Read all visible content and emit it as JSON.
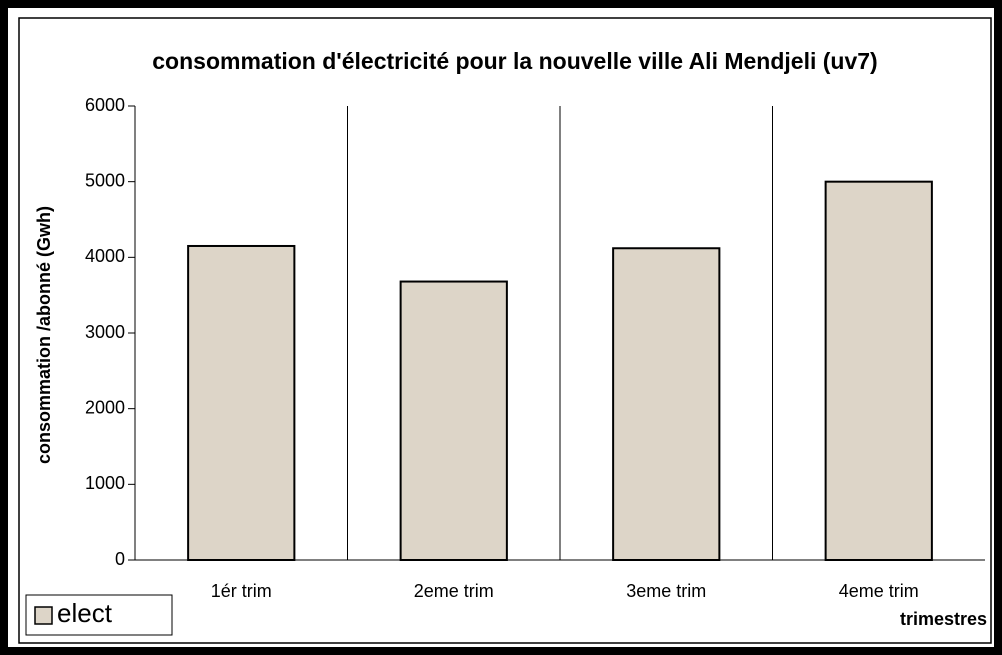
{
  "chart_data": {
    "type": "bar",
    "title": "consommation d'électricité pour la nouvelle ville Ali Mendjeli (uv7)",
    "x_label": "trimestres",
    "y_label": "consommation /abonné (Gwh)",
    "categories": [
      "1ér trim",
      "2eme trim",
      "3eme trim",
      "4eme trim"
    ],
    "series": [
      {
        "name": "elect",
        "color": "#ddd5c8",
        "values": [
          4150,
          3680,
          4120,
          5000
        ]
      }
    ],
    "ylim": [
      0,
      6000
    ],
    "yticks": [
      0,
      1000,
      2000,
      3000,
      4000,
      5000,
      6000
    ],
    "grid": false,
    "legend": "bottom-left"
  }
}
